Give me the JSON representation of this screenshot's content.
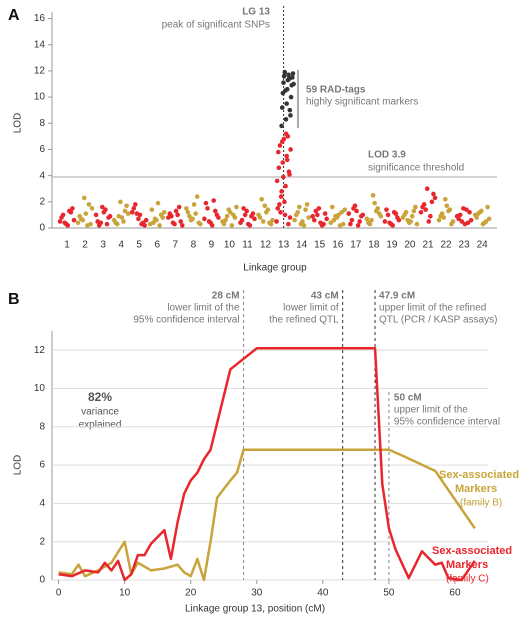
{
  "chart_data": [
    {
      "type": "manhattan",
      "panel": "A",
      "ylabel": "LOD",
      "xlabel": "Linkage group",
      "ylim": [
        0,
        16.5
      ],
      "yticks": [
        0,
        2,
        4,
        6,
        8,
        10,
        12,
        14,
        16
      ],
      "threshold": 3.9,
      "peak_group": 12,
      "annotations": {
        "peak_title": "LG 13",
        "peak_text": "peak of significant SNPs",
        "tags_title": "59 RAD-tags",
        "tags_text": "highly significant markers",
        "threshold_title": "LOD  3.9",
        "threshold_text": "significance threshold"
      },
      "groups": [
        {
          "label": "1",
          "color": "#e8262d",
          "values": [
            0.5,
            1.2,
            0.3,
            0.8,
            1.5,
            0.2,
            1.0,
            0.6,
            1.3,
            0.4
          ]
        },
        {
          "label": "2",
          "color": "#c9a43a",
          "values": [
            0.4,
            1.8,
            2.3,
            0.9,
            0.3,
            1.1,
            0.7,
            1.5,
            0.2,
            0.6
          ]
        },
        {
          "label": "3",
          "color": "#e8262d",
          "values": [
            1.0,
            0.3,
            1.6,
            0.5,
            0.8,
            1.2,
            0.2,
            0.9,
            1.4,
            0.4
          ]
        },
        {
          "label": "4",
          "color": "#c9a43a",
          "values": [
            0.6,
            1.3,
            2.0,
            0.4,
            1.7,
            0.8,
            0.3,
            1.1,
            0.5,
            0.9
          ]
        },
        {
          "label": "5",
          "color": "#e8262d",
          "values": [
            1.2,
            0.4,
            0.7,
            1.5,
            0.2,
            1.0,
            1.8,
            0.6,
            0.3,
            1.1
          ]
        },
        {
          "label": "6",
          "color": "#c9a43a",
          "values": [
            0.3,
            1.0,
            0.6,
            1.4,
            0.8,
            1.9,
            0.4,
            1.2,
            0.2,
            0.7
          ]
        },
        {
          "label": "7",
          "color": "#e8262d",
          "values": [
            0.8,
            1.6,
            0.3,
            1.1,
            0.5,
            1.3,
            0.9,
            0.2,
            1.0,
            0.4
          ]
        },
        {
          "label": "8",
          "color": "#c9a43a",
          "values": [
            1.5,
            2.4,
            0.7,
            1.2,
            0.4,
            1.8,
            0.9,
            0.3,
            1.1,
            0.6
          ]
        },
        {
          "label": "9",
          "color": "#e8262d",
          "values": [
            0.7,
            1.3,
            0.4,
            1.9,
            1.0,
            0.2,
            1.5,
            0.8,
            2.1,
            0.5
          ]
        },
        {
          "label": "10",
          "color": "#c9a43a",
          "values": [
            0.5,
            1.0,
            1.4,
            0.3,
            0.8,
            1.2,
            0.6,
            1.6,
            0.2,
            0.9
          ]
        },
        {
          "label": "11",
          "color": "#e8262d",
          "values": [
            0.4,
            0.9,
            1.3,
            0.6,
            1.1,
            0.3,
            1.5,
            0.7,
            0.2,
            1.0
          ]
        },
        {
          "label": "12",
          "color": "#c9a43a",
          "values": [
            1.0,
            0.4,
            1.7,
            0.8,
            0.3,
            1.2,
            2.2,
            0.6,
            1.4,
            0.5
          ]
        },
        {
          "label": "13",
          "color": "#e8262d",
          "values": [
            0.5,
            1.2,
            2.0,
            0.3,
            1.5,
            2.8,
            3.2,
            4.1,
            4.6,
            5.0,
            5.5,
            6.0,
            6.3,
            6.8,
            7.0,
            3.6,
            2.4,
            1.0,
            4.3,
            5.8,
            6.6,
            7.2,
            0.8,
            1.8,
            3.9,
            5.2
          ]
        },
        {
          "label": "14",
          "color": "#c9a43a",
          "values": [
            0.6,
            1.4,
            0.3,
            1.0,
            1.8,
            0.5,
            1.2,
            0.8,
            0.2,
            1.6
          ]
        },
        {
          "label": "15",
          "color": "#e8262d",
          "values": [
            0.9,
            0.3,
            1.5,
            0.6,
            1.1,
            0.4,
            1.3,
            0.7,
            0.2,
            1.0
          ]
        },
        {
          "label": "16",
          "color": "#c9a43a",
          "values": [
            0.4,
            1.2,
            0.8,
            1.6,
            0.3,
            1.0,
            0.6,
            1.4,
            0.2,
            0.9
          ]
        },
        {
          "label": "17",
          "color": "#e8262d",
          "values": [
            1.1,
            0.5,
            1.7,
            0.3,
            0.9,
            1.3,
            0.6,
            1.0,
            0.2,
            1.5
          ]
        },
        {
          "label": "18",
          "color": "#c9a43a",
          "values": [
            0.7,
            1.5,
            2.5,
            0.4,
            1.1,
            1.9,
            0.3,
            0.9,
            1.3,
            0.6
          ]
        },
        {
          "label": "19",
          "color": "#e8262d",
          "values": [
            0.5,
            1.1,
            0.3,
            1.4,
            0.8,
            0.2,
            1.0,
            0.6,
            1.2,
            0.4
          ]
        },
        {
          "label": "20",
          "color": "#c9a43a",
          "values": [
            0.8,
            1.3,
            0.4,
            1.0,
            1.6,
            0.5,
            1.2,
            0.3,
            0.9,
            0.6
          ]
        },
        {
          "label": "21",
          "color": "#e8262d",
          "values": [
            1.2,
            2.0,
            3.0,
            1.6,
            2.6,
            0.5,
            1.8,
            2.3,
            0.9,
            1.4
          ]
        },
        {
          "label": "22",
          "color": "#c9a43a",
          "values": [
            0.6,
            1.4,
            2.2,
            0.9,
            0.3,
            1.7,
            1.1,
            0.5,
            1.3,
            0.8
          ]
        },
        {
          "label": "23",
          "color": "#e8262d",
          "values": [
            0.9,
            0.4,
            1.5,
            0.7,
            1.2,
            0.3,
            1.0,
            0.6,
            1.4,
            0.5
          ]
        },
        {
          "label": "24",
          "color": "#c9a43a",
          "values": [
            1.0,
            0.5,
            1.3,
            0.8,
            1.6,
            0.3,
            1.1,
            0.7,
            0.4,
            1.2
          ]
        }
      ],
      "highlight": {
        "color": "#333333",
        "values": [
          7.8,
          8.3,
          8.6,
          9.2,
          9.5,
          10.0,
          10.3,
          10.6,
          10.9,
          11.1,
          11.3,
          11.5,
          11.6,
          11.7,
          11.8,
          11.9,
          11.4,
          11.0,
          10.5,
          9.0
        ]
      }
    },
    {
      "type": "line",
      "panel": "B",
      "ylabel": "LOD",
      "xlabel": "Linkage group 13, position (cM)",
      "xlim": [
        -1,
        65
      ],
      "xticks": [
        0,
        10,
        20,
        30,
        40,
        50,
        60
      ],
      "ylim": [
        0,
        13
      ],
      "yticks": [
        0,
        2,
        4,
        6,
        8,
        10,
        12
      ],
      "grid": true,
      "variance": {
        "value_label": "82%",
        "text": [
          "variance",
          "explained"
        ]
      },
      "series": [
        {
          "name": [
            "Sex-associated",
            "Markers",
            "(family B)"
          ],
          "color": "#c9a43a",
          "x": [
            0,
            2,
            3,
            4,
            6,
            8,
            10,
            11,
            12,
            14,
            16,
            18,
            19,
            20,
            21,
            22,
            23,
            24,
            26,
            27,
            28,
            29,
            50,
            52,
            57,
            63
          ],
          "values": [
            0.4,
            0.3,
            0.8,
            0.2,
            0.5,
            0.9,
            2.0,
            0.3,
            0.9,
            0.5,
            0.6,
            0.8,
            0.4,
            0.2,
            1.1,
            0,
            2.0,
            4.3,
            5.2,
            5.6,
            6.8,
            6.8,
            6.8,
            6.5,
            5.7,
            2.7
          ]
        },
        {
          "name": [
            "Sex-associated",
            "Markers",
            "(family C)"
          ],
          "color": "#e8262d",
          "x": [
            0,
            2,
            4,
            6,
            7,
            8,
            9,
            10,
            11,
            12,
            13,
            14,
            16,
            17,
            18,
            19,
            20,
            21,
            22,
            23,
            26,
            30,
            47.9,
            49,
            50,
            51,
            53,
            55,
            57,
            58,
            59,
            61,
            63
          ],
          "values": [
            0.3,
            0.2,
            0.5,
            0.4,
            0.9,
            0.5,
            1.0,
            0,
            0.3,
            1.3,
            1.3,
            1.9,
            2.6,
            1.1,
            3.0,
            4.5,
            5.2,
            5.6,
            6.3,
            6.8,
            11.0,
            12.1,
            12.1,
            5.0,
            2.7,
            1.6,
            0.1,
            1.5,
            0.8,
            0.9,
            0.1,
            0,
            1.0
          ]
        }
      ],
      "vlines": [
        {
          "x": 28,
          "label": "28 cM",
          "text": [
            "lower limit of the",
            "95% confidence interval"
          ]
        },
        {
          "x": 43,
          "label": "43 cM",
          "text": [
            "lower limit of",
            "the refined QTL"
          ]
        },
        {
          "x": 47.9,
          "label": "47.9 cM",
          "text": [
            "upper limit of the refined",
            "QTL (PCR / KASP assays)"
          ]
        },
        {
          "x": 50,
          "label": "50 cM",
          "text": [
            "upper limit of the",
            "95% confidence interval"
          ]
        }
      ]
    }
  ]
}
